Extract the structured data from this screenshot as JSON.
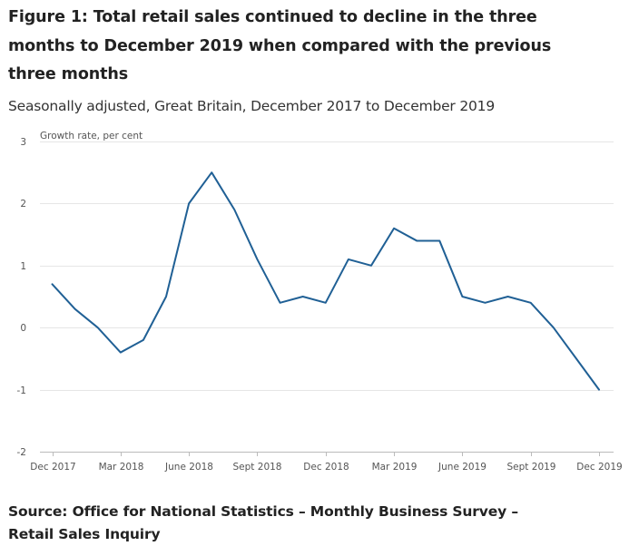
{
  "figure": {
    "title": "Figure 1: Total retail sales continued to decline in the three months to December 2019 when compared with the previous three months",
    "subtitle": "Seasonally adjusted, Great Britain, December 2017 to December 2019",
    "source": "Source: Office for National Statistics – Monthly Business Survey – Retail Sales Inquiry"
  },
  "colors": {
    "line": "#206095",
    "grid": "#e6e6e6",
    "axis": "#bbbbbb"
  },
  "chart_data": {
    "type": "line",
    "title": "Figure 1: Total retail sales continued to decline in the three months to December 2019 when compared with the previous three months",
    "subtitle": "Seasonally adjusted, Great Britain, December 2017 to December 2019",
    "xlabel": "",
    "ylabel": "Growth rate, per cent",
    "ylim": [
      -2,
      3
    ],
    "yticks": [
      "3",
      "2",
      "1",
      "0",
      "-1",
      "-2"
    ],
    "ytick_values": [
      3,
      2,
      1,
      0,
      -1,
      -2
    ],
    "x": [
      "Dec 2017",
      "Jan 2018",
      "Feb 2018",
      "Mar 2018",
      "Apr 2018",
      "May 2018",
      "June 2018",
      "Jul 2018",
      "Aug 2018",
      "Sept 2018",
      "Oct 2018",
      "Nov 2018",
      "Dec 2018",
      "Jan 2019",
      "Feb 2019",
      "Mar 2019",
      "Apr 2019",
      "May 2019",
      "June 2019",
      "Jul 2019",
      "Aug 2019",
      "Sept 2019",
      "Oct 2019",
      "Nov 2019",
      "Dec 2019"
    ],
    "xtick_labels": [
      "Dec 2017",
      "Mar 2018",
      "June 2018",
      "Sept 2018",
      "Dec 2018",
      "Mar 2019",
      "June 2019",
      "Sept 2019",
      "Dec 2019"
    ],
    "xtick_indices": [
      0,
      3,
      6,
      9,
      12,
      15,
      18,
      21,
      24
    ],
    "series": [
      {
        "name": "Total retail sales growth rate",
        "values": [
          0.7,
          0.3,
          0.0,
          -0.4,
          -0.2,
          0.5,
          2.0,
          2.5,
          1.9,
          1.1,
          0.4,
          0.5,
          0.4,
          1.1,
          1.0,
          1.6,
          1.4,
          1.4,
          0.5,
          0.4,
          0.5,
          0.4,
          0.0,
          -0.5,
          -1.0
        ]
      }
    ],
    "grid": true,
    "legend": "none"
  }
}
